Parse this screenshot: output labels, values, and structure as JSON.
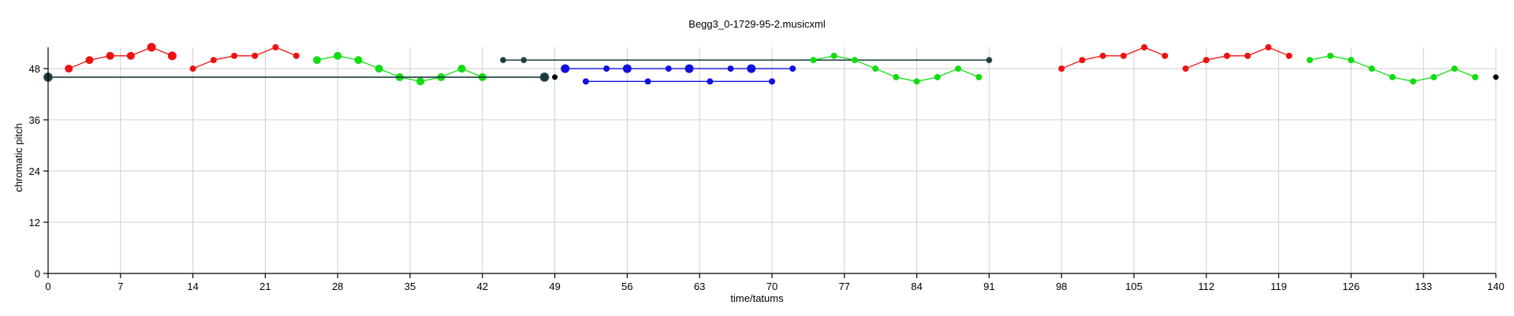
{
  "chart_data": {
    "type": "scatter",
    "title": "Begg3_0-1729-95-2.musicxml",
    "xlabel": "time/tatums",
    "ylabel": "chromatic pitch",
    "xlim": [
      0,
      140
    ],
    "ylim": [
      0,
      53
    ],
    "x_ticks": [
      0,
      7,
      14,
      21,
      28,
      35,
      42,
      49,
      56,
      63,
      70,
      77,
      84,
      91,
      98,
      105,
      112,
      119,
      126,
      133,
      140
    ],
    "y_ticks": [
      0,
      12,
      24,
      36,
      48
    ],
    "grid": true,
    "legend": "none",
    "series": [
      {
        "color": "#ee1111",
        "style": "line-markers",
        "x": [
          2,
          4,
          6,
          8,
          10,
          12
        ],
        "y": [
          48,
          50,
          51,
          51,
          53,
          51
        ],
        "marker_size": [
          5,
          5,
          5,
          5,
          5.5,
          5.5
        ]
      },
      {
        "color": "#ee1111",
        "style": "line-markers",
        "x": [
          14,
          16,
          18,
          20,
          22,
          24
        ],
        "y": [
          48,
          50,
          51,
          51,
          53,
          51
        ],
        "marker_size": [
          4,
          4,
          4,
          4,
          4,
          4
        ]
      },
      {
        "color": "#11dd11",
        "style": "line-markers",
        "x": [
          26,
          28,
          30,
          32,
          34,
          36,
          38,
          40,
          42
        ],
        "y": [
          50,
          51,
          50,
          48,
          46,
          45,
          46,
          48,
          46
        ],
        "marker_size": [
          5,
          5,
          5,
          5,
          5,
          5,
          5,
          5,
          5
        ]
      },
      {
        "color": "#1a3a3a",
        "style": "segment",
        "x": [
          0,
          48
        ],
        "y": [
          46,
          46
        ],
        "marker_size": [
          5.5,
          5.5
        ]
      },
      {
        "color": "#000000",
        "style": "markers",
        "x": [
          49
        ],
        "y": [
          46
        ],
        "marker_size": [
          3.5
        ]
      },
      {
        "color": "#1a3a3a",
        "style": "segment",
        "x": [
          44,
          46,
          91
        ],
        "y": [
          50,
          50,
          50
        ],
        "marker_size": [
          3.5,
          3.5,
          3.5
        ]
      },
      {
        "color": "#1111dd",
        "style": "line-markers",
        "x": [
          50,
          54,
          56,
          60,
          62,
          66,
          68,
          72
        ],
        "y": [
          48,
          48,
          48,
          48,
          48,
          48,
          48,
          48
        ],
        "marker_size": [
          5.5,
          4,
          5.5,
          4,
          5.5,
          4,
          5.5,
          4
        ]
      },
      {
        "color": "#1111dd",
        "style": "line-markers",
        "x": [
          52,
          58,
          64,
          70
        ],
        "y": [
          45,
          45,
          45,
          45
        ],
        "marker_size": [
          4,
          4,
          4,
          4
        ]
      },
      {
        "color": "#11dd11",
        "style": "line-markers",
        "x": [
          74,
          76,
          78,
          80,
          82,
          84,
          86,
          88,
          90
        ],
        "y": [
          50,
          51,
          50,
          48,
          46,
          45,
          46,
          48,
          46
        ],
        "marker_size": [
          4,
          4,
          4,
          4,
          4,
          4,
          4,
          4,
          4
        ]
      },
      {
        "color": "#ee1111",
        "style": "line-markers",
        "x": [
          98,
          100,
          102,
          104,
          106,
          108
        ],
        "y": [
          48,
          50,
          51,
          51,
          53,
          51
        ],
        "marker_size": [
          4,
          4,
          4,
          4,
          4,
          4
        ]
      },
      {
        "color": "#ee1111",
        "style": "line-markers",
        "x": [
          110,
          112,
          114,
          116,
          118,
          120
        ],
        "y": [
          48,
          50,
          51,
          51,
          53,
          51
        ],
        "marker_size": [
          4,
          4,
          4,
          4,
          4,
          4
        ]
      },
      {
        "color": "#11dd11",
        "style": "line-markers",
        "x": [
          122,
          124,
          126,
          128,
          130,
          132,
          134,
          136,
          138
        ],
        "y": [
          50,
          51,
          50,
          48,
          46,
          45,
          46,
          48,
          46
        ],
        "marker_size": [
          4,
          4,
          4,
          4,
          4,
          4,
          4,
          4,
          4
        ]
      },
      {
        "color": "#000000",
        "style": "markers",
        "x": [
          140
        ],
        "y": [
          46
        ],
        "marker_size": [
          3.5
        ]
      }
    ]
  }
}
